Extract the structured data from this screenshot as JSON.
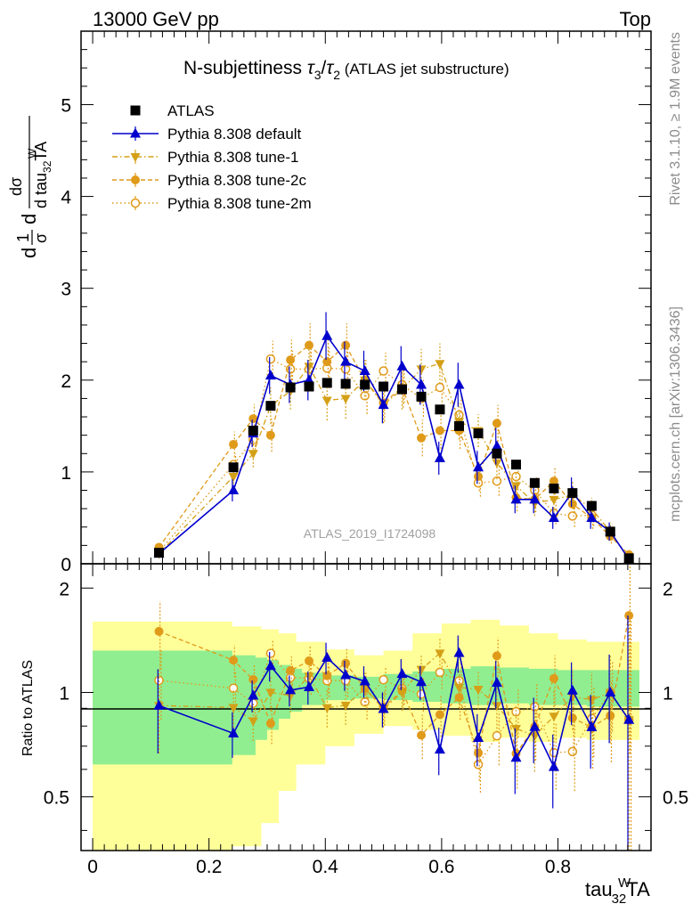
{
  "header": {
    "left": "13000 GeV pp",
    "right": "Top"
  },
  "side_text": {
    "rivet": "Rivet 3.1.10, ≥ 1.9M events",
    "mcplots": "mcplots.cern.ch [arXiv:1306.3436]"
  },
  "chart_data": {
    "type": "scatter",
    "title": {
      "main": "N-subjettiness ",
      "tau": "τ",
      "n3": "3",
      "slash": "/",
      "n2": "2",
      "extra": " (ATLAS jet substructure)"
    },
    "watermark": "ATLAS_2019_I1724098",
    "ylabel": {
      "oneover": "1",
      "sigma": "σ",
      "d": "d",
      "dsigma": "dσ",
      "dtau": "d tau",
      "sup": "W",
      "sub": "32",
      "ta": "TA"
    },
    "xlabel": {
      "base": "tau",
      "sup": "W",
      "sub": "32",
      "ta": "TA"
    },
    "ratio_ylabel": "Ratio to ATLAS",
    "xlim": [
      -0.02,
      0.96
    ],
    "ylim": [
      0,
      5.8
    ],
    "ratio_ylim": [
      0.35,
      2.35
    ],
    "x_ticks": [
      "0",
      "0.2",
      "0.4",
      "0.6",
      "0.8"
    ],
    "y_ticks": [
      "0",
      "1",
      "2",
      "3",
      "4",
      "5"
    ],
    "ratio_ticks": [
      "0.5",
      "1",
      "2"
    ],
    "x": [
      0.114,
      0.242,
      0.276,
      0.306,
      0.34,
      0.372,
      0.403,
      0.435,
      0.468,
      0.5,
      0.532,
      0.565,
      0.597,
      0.63,
      0.663,
      0.695,
      0.728,
      0.76,
      0.793,
      0.825,
      0.858,
      0.89,
      0.922
    ],
    "band_inner": [
      [
        0.0,
        0.62,
        1.32
      ],
      [
        0.24,
        0.66,
        1.28
      ],
      [
        0.28,
        0.73,
        1.26
      ],
      [
        0.3,
        0.78,
        1.24
      ],
      [
        0.32,
        0.84,
        1.2
      ],
      [
        0.34,
        0.88,
        1.17
      ],
      [
        0.36,
        0.92,
        1.14
      ],
      [
        0.4,
        0.95,
        1.12
      ],
      [
        0.45,
        0.96,
        1.11
      ],
      [
        0.5,
        0.95,
        1.13
      ],
      [
        0.55,
        0.94,
        1.15
      ],
      [
        0.6,
        0.93,
        1.17
      ],
      [
        0.65,
        0.92,
        1.19
      ],
      [
        0.7,
        0.93,
        1.18
      ],
      [
        0.75,
        0.92,
        1.17
      ],
      [
        0.8,
        0.92,
        1.16
      ],
      [
        0.85,
        0.91,
        1.16
      ],
      [
        0.94,
        0.91,
        1.16
      ]
    ],
    "band_outer": [
      [
        0.0,
        0.34,
        1.6
      ],
      [
        0.24,
        0.36,
        1.55
      ],
      [
        0.29,
        0.42,
        1.52
      ],
      [
        0.32,
        0.52,
        1.48
      ],
      [
        0.35,
        0.62,
        1.4
      ],
      [
        0.4,
        0.7,
        1.33
      ],
      [
        0.45,
        0.76,
        1.28
      ],
      [
        0.5,
        0.8,
        1.32
      ],
      [
        0.55,
        0.78,
        1.48
      ],
      [
        0.6,
        0.75,
        1.58
      ],
      [
        0.65,
        0.72,
        1.62
      ],
      [
        0.7,
        0.74,
        1.56
      ],
      [
        0.75,
        0.72,
        1.48
      ],
      [
        0.8,
        0.74,
        1.42
      ],
      [
        0.85,
        0.73,
        1.4
      ],
      [
        0.94,
        0.74,
        1.38
      ]
    ],
    "series": [
      {
        "name": "ATLAS",
        "color": "#000000",
        "marker": "square",
        "line": "none",
        "values": [
          0.12,
          1.05,
          1.45,
          1.72,
          1.92,
          1.93,
          1.97,
          1.96,
          1.95,
          1.93,
          1.9,
          1.82,
          1.68,
          1.5,
          1.42,
          1.2,
          1.08,
          0.88,
          0.82,
          0.77,
          0.63,
          0.35,
          0.06
        ],
        "errors": [
          0.03,
          0.04,
          0.04,
          0.04,
          0.04,
          0.04,
          0.04,
          0.04,
          0.04,
          0.04,
          0.04,
          0.04,
          0.04,
          0.05,
          0.04,
          0.04,
          0.04,
          0.04,
          0.04,
          0.04,
          0.04,
          0.03,
          0.02
        ]
      },
      {
        "name": "Pythia 8.308 default",
        "color": "#0000cc",
        "marker": "triangle-up",
        "line": "solid",
        "values": [
          0.11,
          0.8,
          1.42,
          2.05,
          1.95,
          2.0,
          2.48,
          2.2,
          2.1,
          1.73,
          2.15,
          1.95,
          1.15,
          1.95,
          1.05,
          1.28,
          0.7,
          0.7,
          0.5,
          0.78,
          0.5,
          0.35,
          0.05
        ],
        "errors": [
          0.03,
          0.12,
          0.15,
          0.2,
          0.2,
          0.22,
          0.26,
          0.22,
          0.22,
          0.2,
          0.22,
          0.22,
          0.18,
          0.24,
          0.18,
          0.2,
          0.15,
          0.15,
          0.12,
          0.16,
          0.12,
          0.1,
          0.05
        ]
      },
      {
        "name": "Pythia 8.308 tune-1",
        "color": "#d4a017",
        "marker": "triangle-down",
        "line": "dashdot",
        "values": [
          0.11,
          0.95,
          1.2,
          1.72,
          1.88,
          2.15,
          1.78,
          1.8,
          2.0,
          1.73,
          1.9,
          2.12,
          2.18,
          1.55,
          1.45,
          1.1,
          0.85,
          0.66,
          0.7,
          0.75,
          0.6,
          0.35,
          0.05
        ],
        "errors": [
          0.03,
          0.12,
          0.15,
          0.2,
          0.2,
          0.22,
          0.22,
          0.22,
          0.22,
          0.2,
          0.22,
          0.22,
          0.22,
          0.2,
          0.18,
          0.18,
          0.15,
          0.14,
          0.14,
          0.15,
          0.12,
          0.1,
          0.05
        ]
      },
      {
        "name": "Pythia 8.308 tune-2c",
        "color": "#e09a1a",
        "marker": "circle",
        "line": "dashed",
        "values": [
          0.18,
          1.3,
          1.58,
          1.4,
          2.22,
          2.38,
          2.2,
          2.38,
          2.0,
          1.75,
          1.92,
          1.37,
          1.45,
          1.45,
          0.95,
          1.53,
          0.72,
          0.7,
          0.9,
          0.65,
          0.5,
          0.3,
          0.1
        ],
        "errors": [
          0.04,
          0.14,
          0.16,
          0.18,
          0.22,
          0.24,
          0.24,
          0.24,
          0.22,
          0.2,
          0.22,
          0.2,
          0.2,
          0.2,
          0.16,
          0.2,
          0.15,
          0.14,
          0.15,
          0.14,
          0.12,
          0.08,
          0.06
        ]
      },
      {
        "name": "Pythia 8.308 tune-2m",
        "color": "#e09a1a",
        "marker": "open-circle",
        "line": "dotted",
        "values": [
          0.13,
          1.08,
          1.35,
          2.23,
          2.12,
          2.12,
          2.13,
          2.12,
          1.83,
          2.1,
          1.95,
          1.8,
          1.92,
          1.62,
          0.88,
          0.9,
          0.95,
          0.8,
          0.55,
          0.52,
          0.53,
          0.35,
          0.05
        ],
        "errors": [
          0.03,
          0.12,
          0.15,
          0.2,
          0.2,
          0.22,
          0.22,
          0.22,
          0.2,
          0.2,
          0.2,
          0.2,
          0.2,
          0.2,
          0.15,
          0.16,
          0.15,
          0.14,
          0.12,
          0.12,
          0.12,
          0.08,
          0.05
        ]
      }
    ]
  }
}
